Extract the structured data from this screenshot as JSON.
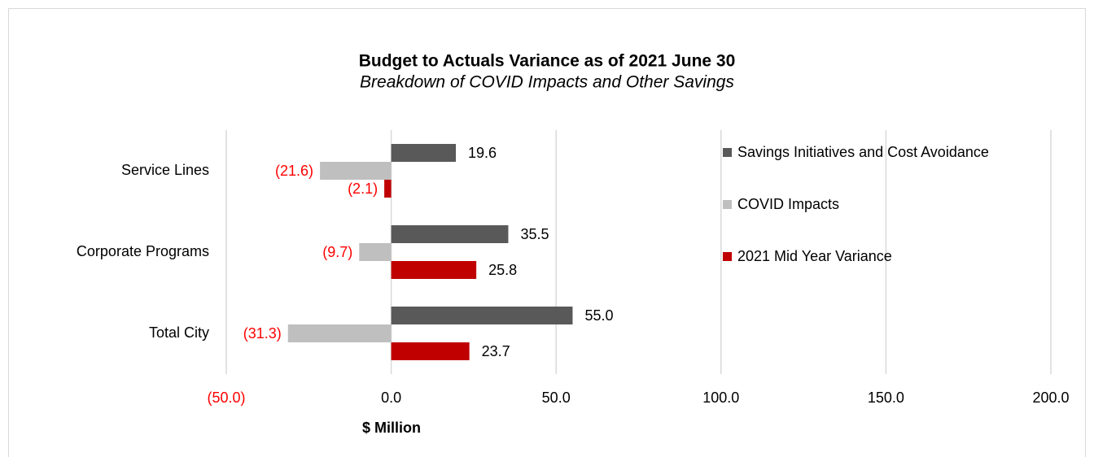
{
  "chart_data": {
    "type": "hbar",
    "title": "Budget to Actuals Variance as of 2021 June 30",
    "subtitle": "Breakdown of COVID Impacts and Other Savings",
    "x_label": "$ Million",
    "categories": [
      "Service Lines",
      "Corporate Programs",
      "Total City"
    ],
    "series": [
      {
        "name": "Savings Initiatives and Cost Avoidance",
        "color": "#595959",
        "values": [
          19.6,
          35.5,
          55.0
        ],
        "value_labels": [
          "19.6",
          "35.5",
          "55.0"
        ]
      },
      {
        "name": "COVID Impacts",
        "color": "#bfbfbf",
        "values": [
          -21.6,
          -9.7,
          -31.3
        ],
        "value_labels": [
          "(21.6)",
          "(9.7)",
          "(31.3)"
        ]
      },
      {
        "name": "2021 Mid Year Variance",
        "color": "#c00000",
        "values": [
          -2.1,
          25.8,
          23.7
        ],
        "value_labels": [
          "(2.1)",
          "25.8",
          "23.7"
        ]
      }
    ],
    "xlim": [
      -50,
      200
    ],
    "xticks": [
      {
        "value": -50,
        "label": "(50.0)"
      },
      {
        "value": 0,
        "label": "0.0"
      },
      {
        "value": 50,
        "label": "50.0"
      },
      {
        "value": 100,
        "label": "100.0"
      },
      {
        "value": 150,
        "label": "150.0"
      },
      {
        "value": 200,
        "label": "200.0"
      }
    ],
    "grid": true,
    "legend": "right",
    "negative_label_color": "#ff0000"
  }
}
